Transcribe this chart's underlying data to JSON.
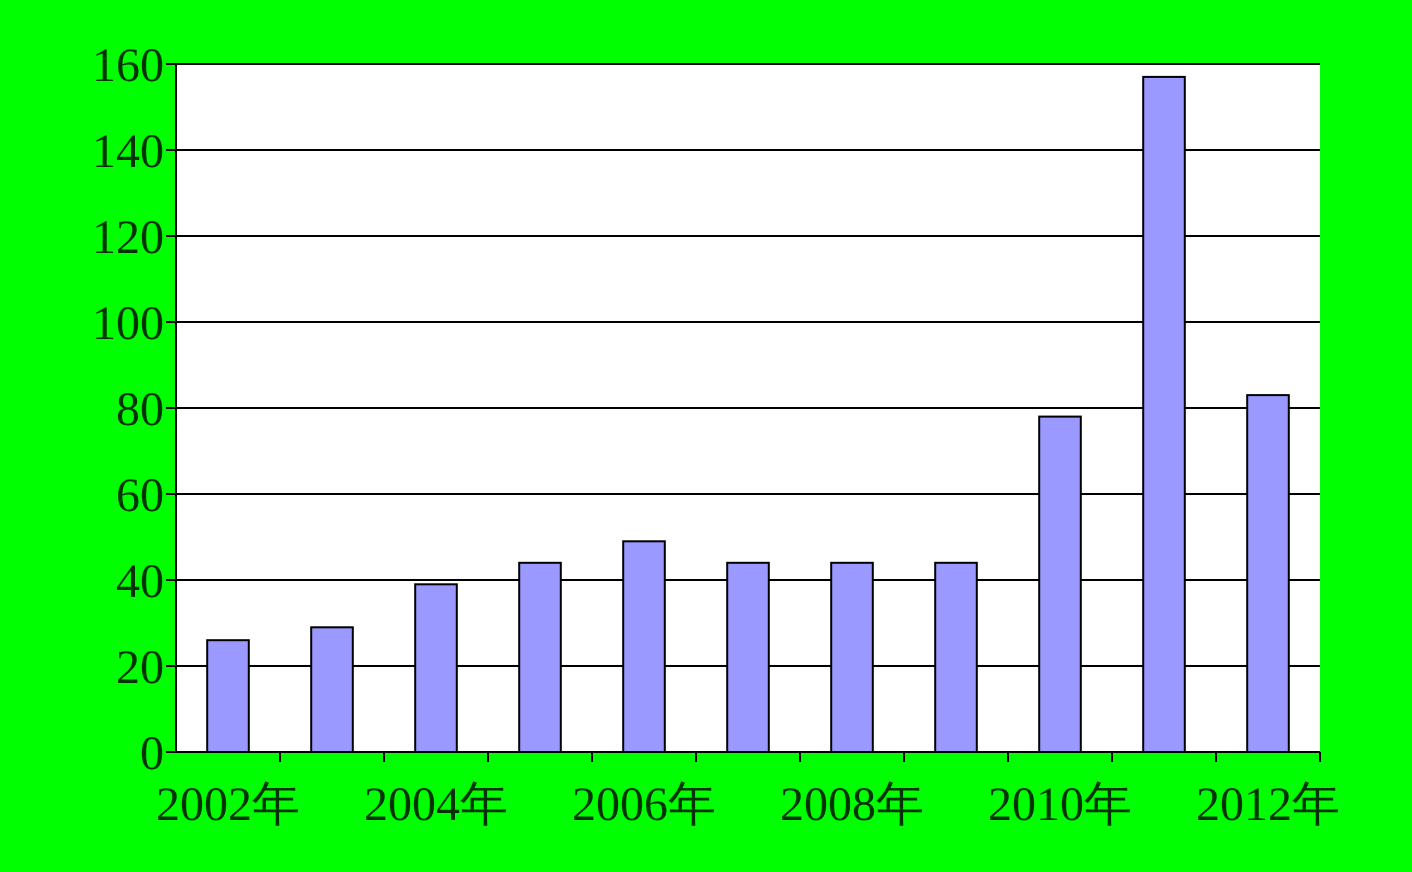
{
  "chart_data": {
    "type": "bar",
    "categories": [
      "2002年",
      null,
      "2004年",
      null,
      "2006年",
      null,
      "2008年",
      null,
      "2010年",
      null,
      "2012年"
    ],
    "values": [
      26,
      29,
      39,
      44,
      49,
      44,
      44,
      44,
      78,
      157,
      83
    ],
    "color": "#9999ff",
    "ylim": [
      0,
      160
    ],
    "yticks": [
      0,
      20,
      40,
      60,
      80,
      100,
      120,
      140,
      160
    ],
    "grid": "y"
  }
}
